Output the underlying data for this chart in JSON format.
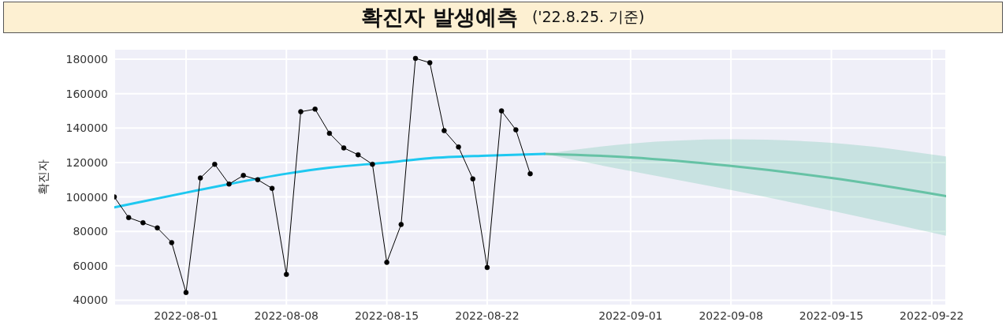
{
  "chart_data": {
    "type": "line",
    "title": "확진자 발생예측",
    "subtitle": "('22.8.25. 기준)",
    "ylabel": "확진자",
    "xlim": [
      "2022-07-27",
      "2022-09-23"
    ],
    "xticks": [
      "2022-08-01",
      "2022-08-08",
      "2022-08-15",
      "2022-08-22",
      "2022-09-01",
      "2022-09-08",
      "2022-09-15",
      "2022-09-22"
    ],
    "ylim": [
      37000,
      186000
    ],
    "yticks": [
      40000,
      60000,
      80000,
      100000,
      120000,
      140000,
      160000,
      180000
    ],
    "grid": true,
    "legend": false,
    "series": [
      {
        "color": "#66c2a5",
        "marker": "none",
        "x": [
          "2022-08-26",
          "2022-09-01",
          "2022-09-08",
          "2022-09-15",
          "2022-09-23"
        ],
        "values": [
          125000,
          123000,
          118000,
          111000,
          100500
        ],
        "lower": [
          125000,
          115000,
          104000,
          92000,
          77500
        ],
        "upper": [
          125000,
          131000,
          133500,
          131500,
          123500
        ]
      },
      {
        "color": "#1ec8f0",
        "marker": "none",
        "x": [
          "2022-07-27",
          "2022-08-01",
          "2022-08-04",
          "2022-08-08",
          "2022-08-11",
          "2022-08-15",
          "2022-08-18",
          "2022-08-22",
          "2022-08-26"
        ],
        "values": [
          94000,
          102500,
          107500,
          113500,
          117000,
          120000,
          122500,
          124000,
          125000
        ]
      },
      {
        "color": "#000000",
        "marker": "circle",
        "x": [
          "2022-07-27",
          "2022-07-28",
          "2022-07-29",
          "2022-07-30",
          "2022-07-31",
          "2022-08-01",
          "2022-08-02",
          "2022-08-03",
          "2022-08-04",
          "2022-08-05",
          "2022-08-06",
          "2022-08-07",
          "2022-08-08",
          "2022-08-09",
          "2022-08-10",
          "2022-08-11",
          "2022-08-12",
          "2022-08-13",
          "2022-08-14",
          "2022-08-15",
          "2022-08-16",
          "2022-08-17",
          "2022-08-18",
          "2022-08-19",
          "2022-08-20",
          "2022-08-21",
          "2022-08-22",
          "2022-08-23",
          "2022-08-24",
          "2022-08-25"
        ],
        "values": [
          100000,
          88000,
          85000,
          82000,
          73500,
          44500,
          111000,
          119000,
          107500,
          112500,
          110000,
          105000,
          55000,
          149500,
          151000,
          137000,
          128500,
          124500,
          119000,
          62000,
          84000,
          180500,
          178000,
          138500,
          129000,
          110500,
          59000,
          150000,
          139000,
          113500
        ]
      }
    ]
  }
}
